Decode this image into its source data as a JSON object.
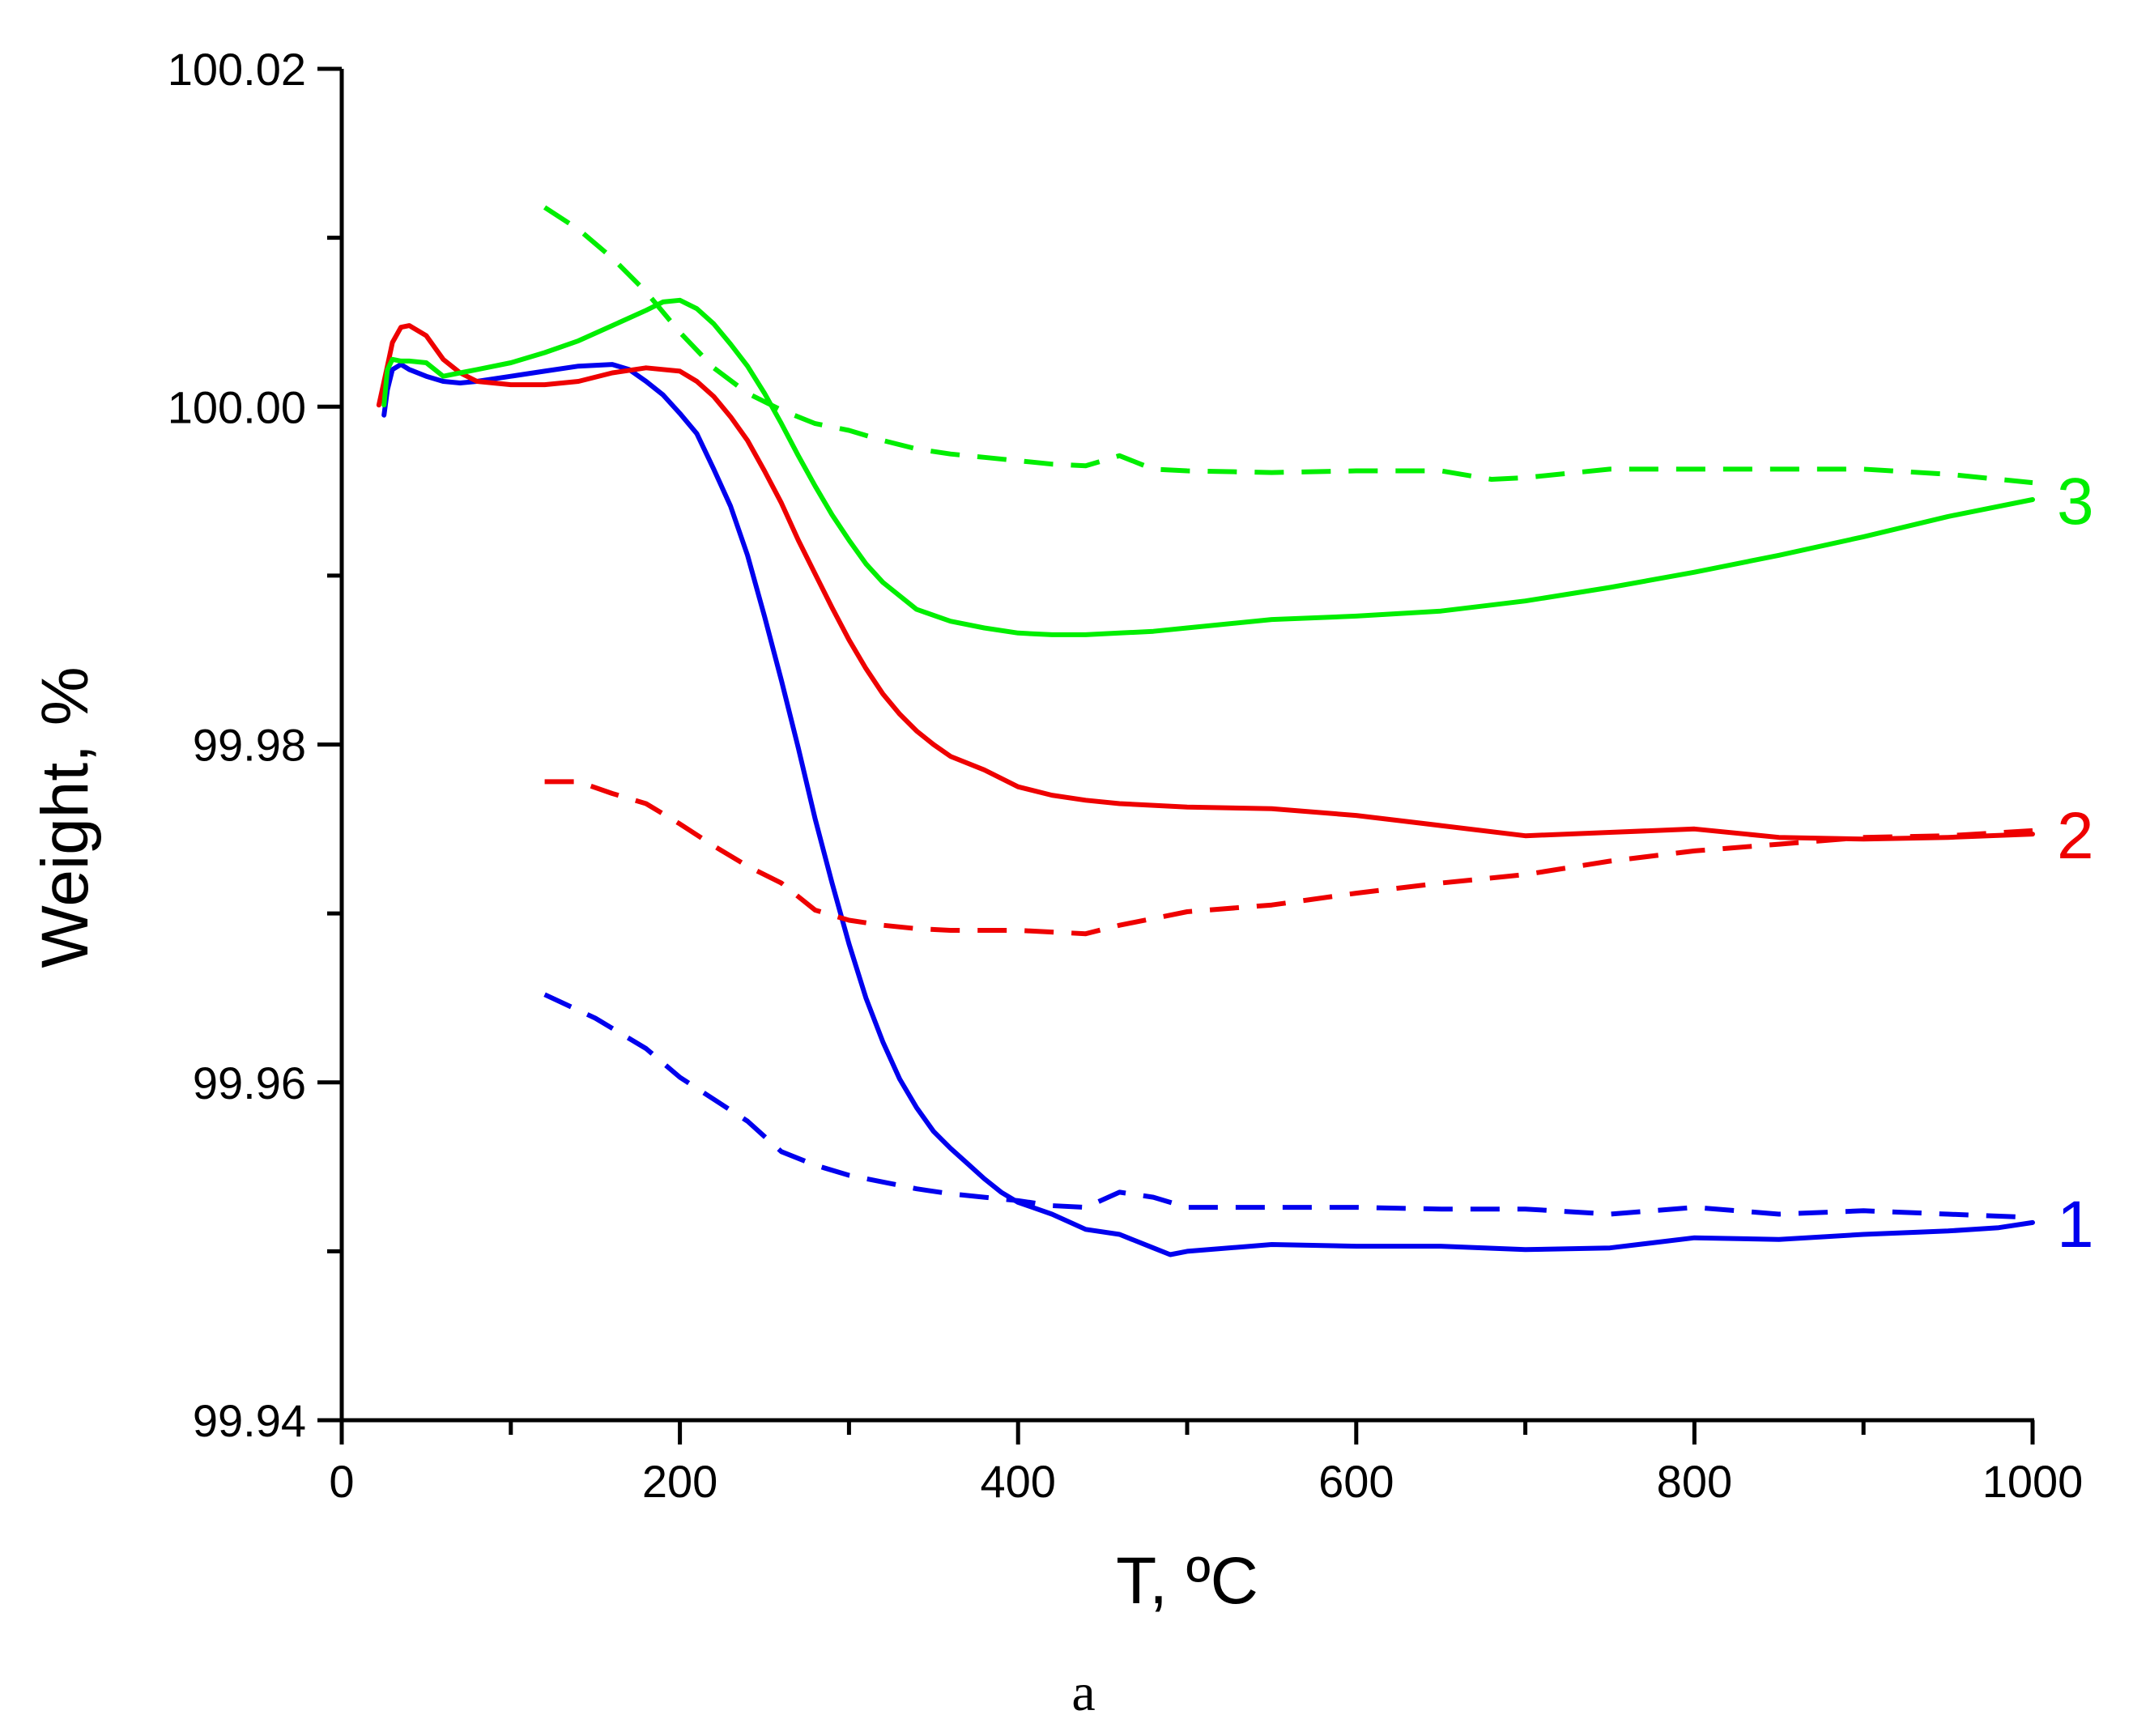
{
  "chart_data": {
    "type": "line",
    "caption": "a",
    "xlabel": "T, ºC",
    "ylabel": "Weight, %",
    "xlim": [
      0,
      1000
    ],
    "ylim": [
      99.94,
      100.02
    ],
    "x_ticks": [
      0,
      200,
      400,
      600,
      800,
      1000
    ],
    "x_tick_labels": [
      "0",
      "200",
      "400",
      "600",
      "800",
      "1000"
    ],
    "y_ticks": [
      99.94,
      99.96,
      99.98,
      100.0,
      100.02
    ],
    "y_tick_labels": [
      "99.94",
      "99.96",
      "99.98",
      "100.00",
      "100.02"
    ],
    "x_minor_ticks": [
      100,
      300,
      500,
      700,
      900
    ],
    "y_minor_ticks": [
      99.95,
      99.97,
      99.99,
      100.01
    ],
    "series": [
      {
        "name": "1 (solid)",
        "label": "1",
        "color": "#0000ee",
        "dash": "solid",
        "x": [
          25,
          27,
          30,
          35,
          40,
          50,
          60,
          70,
          80,
          100,
          120,
          140,
          160,
          170,
          180,
          190,
          200,
          210,
          220,
          230,
          240,
          250,
          260,
          270,
          280,
          290,
          300,
          310,
          320,
          330,
          340,
          350,
          360,
          370,
          380,
          390,
          400,
          420,
          440,
          460,
          480,
          490,
          500,
          550,
          600,
          650,
          700,
          750,
          800,
          850,
          900,
          950,
          980,
          1000
        ],
        "y": [
          99.9995,
          100.001,
          100.0022,
          100.0025,
          100.0022,
          100.0018,
          100.0015,
          100.0014,
          100.0015,
          100.0018,
          100.0021,
          100.0024,
          100.0025,
          100.0022,
          100.0015,
          100.0007,
          99.9996,
          99.9984,
          99.9963,
          99.9941,
          99.9912,
          99.9876,
          99.9838,
          99.9798,
          99.9756,
          99.9718,
          99.9682,
          99.965,
          99.9624,
          99.9602,
          99.9585,
          99.9571,
          99.9561,
          99.9552,
          99.9543,
          99.9535,
          99.9529,
          99.9522,
          99.9513,
          99.951,
          99.9502,
          99.9498,
          99.95,
          99.9504,
          99.9503,
          99.9503,
          99.9501,
          99.9502,
          99.9508,
          99.9507,
          99.951,
          99.9512,
          99.9514,
          99.9517
        ]
      },
      {
        "name": "1 (dashed)",
        "label": "",
        "color": "#0000ee",
        "dash": "dashed",
        "x": [
          120,
          150,
          180,
          200,
          220,
          240,
          260,
          280,
          300,
          320,
          340,
          360,
          380,
          400,
          420,
          440,
          460,
          480,
          500,
          550,
          600,
          650,
          700,
          750,
          800,
          850,
          900,
          950,
          1000
        ],
        "y": [
          99.9652,
          99.9638,
          99.962,
          99.9603,
          99.959,
          99.9577,
          99.9559,
          99.9551,
          99.9545,
          99.9541,
          99.9537,
          99.9534,
          99.9532,
          99.953,
          99.9527,
          99.9526,
          99.9535,
          99.9532,
          99.9526,
          99.9526,
          99.9526,
          99.9525,
          99.9525,
          99.9522,
          99.9526,
          99.9522,
          99.9524,
          99.9522,
          99.952
        ]
      },
      {
        "name": "2 (solid)",
        "label": "2",
        "color": "#ee0000",
        "dash": "solid",
        "x": [
          22,
          27,
          30,
          35,
          40,
          50,
          60,
          70,
          80,
          100,
          120,
          140,
          160,
          180,
          200,
          210,
          220,
          230,
          240,
          250,
          260,
          270,
          280,
          290,
          300,
          310,
          320,
          330,
          340,
          350,
          360,
          380,
          400,
          420,
          440,
          460,
          480,
          500,
          550,
          600,
          650,
          700,
          750,
          800,
          850,
          900,
          950,
          1000
        ],
        "y": [
          100.0001,
          100.0024,
          100.0038,
          100.0047,
          100.0048,
          100.0042,
          100.0028,
          100.002,
          100.0015,
          100.0013,
          100.0013,
          100.0015,
          100.002,
          100.0023,
          100.0021,
          100.0015,
          100.0006,
          99.9994,
          99.998,
          99.9962,
          99.9943,
          99.9921,
          99.9901,
          99.9881,
          99.9862,
          99.9845,
          99.983,
          99.9818,
          99.9808,
          99.98,
          99.9793,
          99.9785,
          99.9775,
          99.977,
          99.9767,
          99.9765,
          99.9764,
          99.9763,
          99.9762,
          99.9758,
          99.9752,
          99.9746,
          99.9748,
          99.975,
          99.9745,
          99.9744,
          99.9745,
          99.9747
        ]
      },
      {
        "name": "2 (dashed)",
        "label": "",
        "color": "#ee0000",
        "dash": "dashed",
        "x": [
          120,
          140,
          160,
          180,
          200,
          220,
          240,
          260,
          280,
          300,
          320,
          340,
          360,
          380,
          400,
          420,
          440,
          460,
          480,
          500,
          550,
          600,
          650,
          700,
          750,
          800,
          850,
          900,
          950,
          1000
        ],
        "y": [
          99.9778,
          99.9778,
          99.9771,
          99.9765,
          99.9753,
          99.974,
          99.9728,
          99.9718,
          99.9702,
          99.9696,
          99.9693,
          99.9691,
          99.969,
          99.969,
          99.969,
          99.9689,
          99.9688,
          99.9693,
          99.9697,
          99.9701,
          99.9705,
          99.9712,
          99.9718,
          99.9723,
          99.9731,
          99.9737,
          99.9741,
          99.9745,
          99.9746,
          99.9749
        ]
      },
      {
        "name": "3 (solid)",
        "label": "3",
        "color": "#00ee00",
        "dash": "solid",
        "x": [
          25,
          27,
          30,
          35,
          40,
          50,
          60,
          70,
          80,
          100,
          120,
          140,
          160,
          180,
          190,
          200,
          210,
          220,
          230,
          240,
          250,
          260,
          270,
          280,
          290,
          300,
          310,
          320,
          340,
          360,
          380,
          400,
          420,
          440,
          460,
          480,
          500,
          550,
          600,
          650,
          700,
          750,
          800,
          850,
          900,
          950,
          1000
        ],
        "y": [
          100.0001,
          100.0022,
          100.0028,
          100.0027,
          100.0027,
          100.0026,
          100.0018,
          100.002,
          100.0022,
          100.0026,
          100.0032,
          100.0039,
          100.0048,
          100.0057,
          100.0062,
          100.0063,
          100.0058,
          100.0049,
          100.0037,
          100.0024,
          100.0008,
          99.999,
          99.9971,
          99.9953,
          99.9936,
          99.9921,
          99.9907,
          99.9896,
          99.988,
          99.9873,
          99.9869,
          99.9866,
          99.9865,
          99.9865,
          99.9866,
          99.9867,
          99.9869,
          99.9874,
          99.9876,
          99.9879,
          99.9885,
          99.9893,
          99.9902,
          99.9912,
          99.9923,
          99.9935,
          99.9945
        ]
      },
      {
        "name": "3 (dashed)",
        "label": "",
        "color": "#00ee00",
        "dash": "dashed",
        "x": [
          120,
          140,
          160,
          180,
          200,
          220,
          240,
          260,
          280,
          300,
          320,
          340,
          360,
          380,
          400,
          420,
          440,
          460,
          480,
          500,
          550,
          600,
          650,
          680,
          700,
          750,
          800,
          850,
          900,
          950,
          1000
        ],
        "y": [
          100.0118,
          100.0105,
          100.0088,
          100.0068,
          100.0044,
          100.0023,
          100.0008,
          99.9998,
          99.999,
          99.9986,
          99.998,
          99.9975,
          99.9972,
          99.997,
          99.9968,
          99.9966,
          99.9965,
          99.9971,
          99.9963,
          99.9962,
          99.9961,
          99.9962,
          99.9962,
          99.9957,
          99.9958,
          99.9963,
          99.9963,
          99.9963,
          99.9963,
          99.996,
          99.9955
        ]
      }
    ]
  }
}
